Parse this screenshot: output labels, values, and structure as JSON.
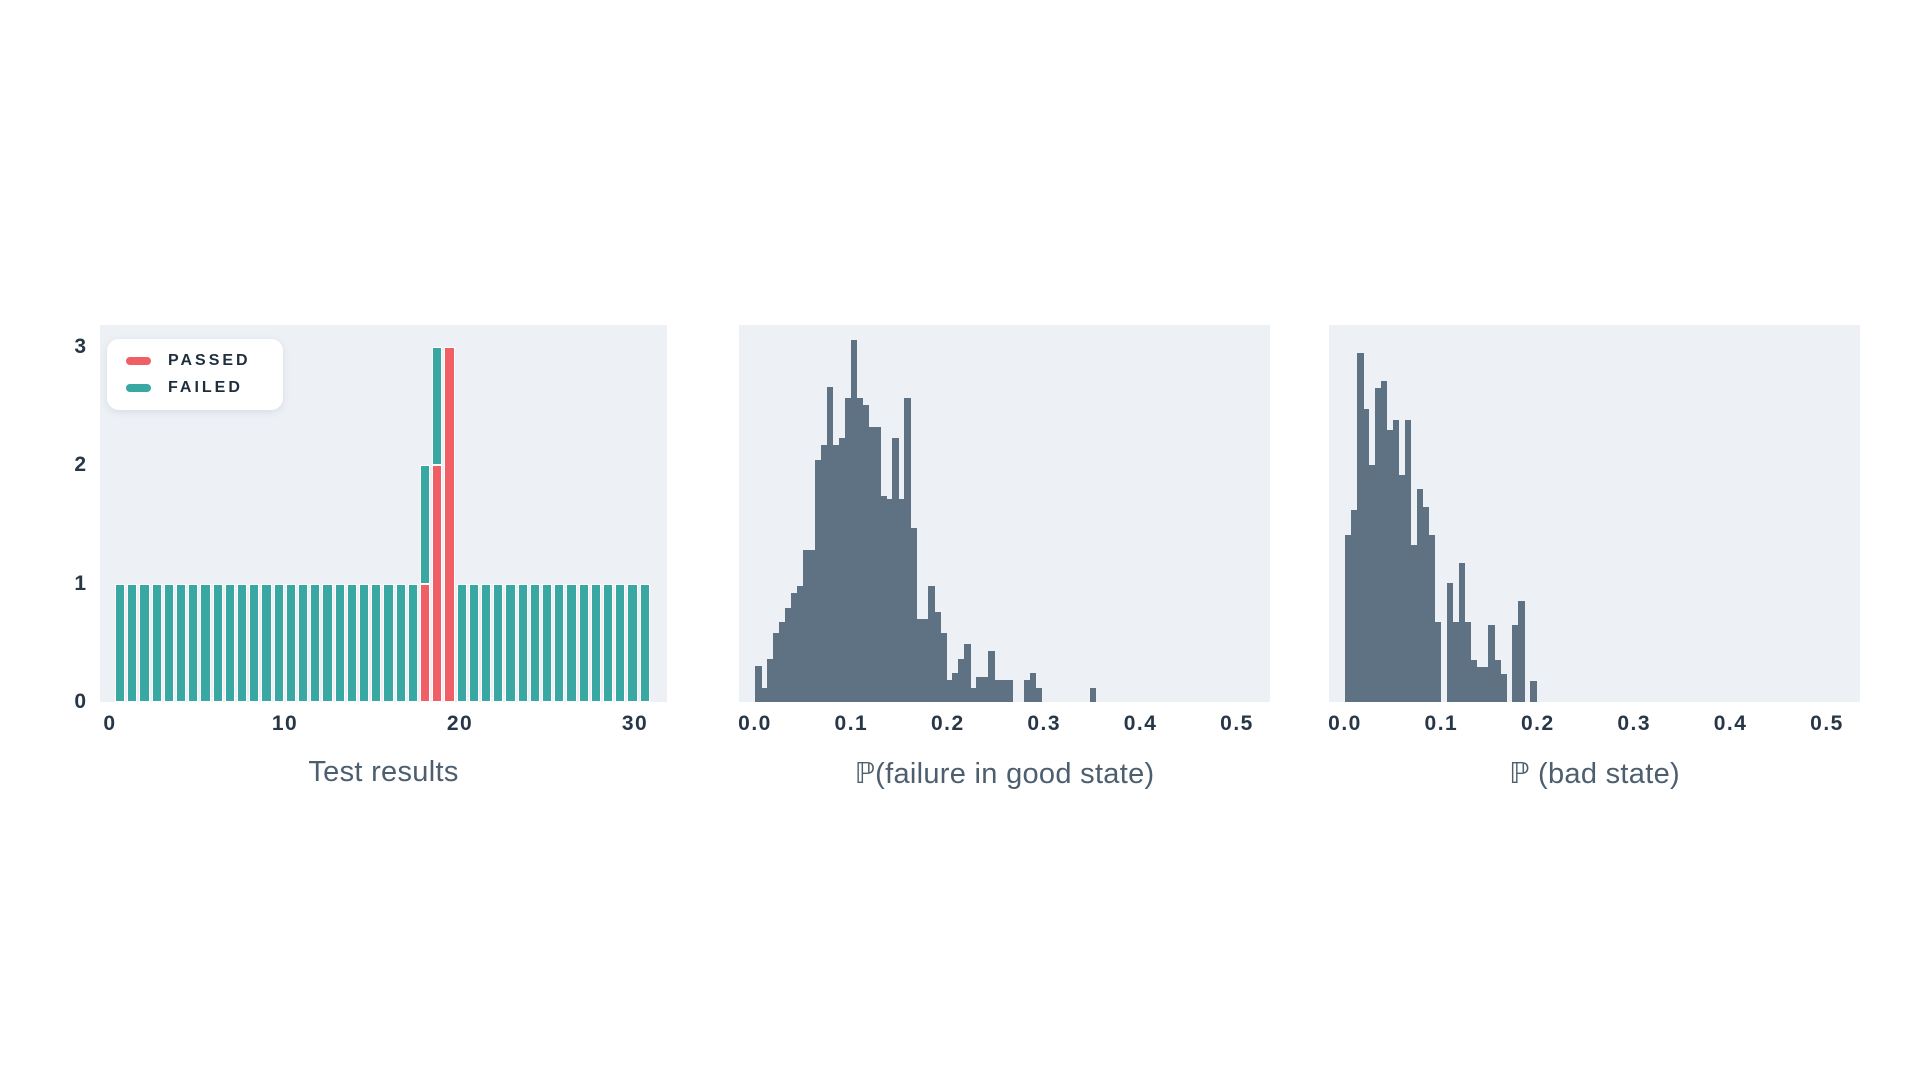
{
  "colors": {
    "passed": "#f15f66",
    "failed": "#39a7a2",
    "hist_bar": "#5e7284",
    "plot_bg": "#edf1f6",
    "page_bg": "#ffffff",
    "tick_text": "#273747",
    "title_text": "#4d5e6e",
    "legend_text": "#1e2e3e"
  },
  "chart_data": [
    {
      "type": "bar",
      "title": "Test results",
      "stacked": true,
      "legend": [
        {
          "label": "PASSED",
          "color": "passed"
        },
        {
          "label": "FAILED",
          "color": "failed"
        }
      ],
      "x_ticks": [
        0,
        10,
        20,
        30
      ],
      "y_ticks": [
        0,
        1,
        2,
        3
      ],
      "xlim": [
        -0.6,
        31.8
      ],
      "ylim": [
        0,
        3.19
      ],
      "x_start": 0.3,
      "bin_width": 0.7,
      "series": [
        {
          "name": "PASSED",
          "values": [
            0,
            0,
            0,
            0,
            0,
            0,
            0,
            0,
            0,
            0,
            0,
            0,
            0,
            0,
            0,
            0,
            0,
            0,
            0,
            0,
            0,
            0,
            0,
            0,
            0,
            1,
            2,
            3,
            0,
            0,
            0,
            0,
            0,
            0,
            0,
            0,
            0,
            0,
            0,
            0,
            0,
            0,
            0,
            0
          ]
        },
        {
          "name": "FAILED",
          "values": [
            1,
            1,
            1,
            1,
            1,
            1,
            1,
            1,
            1,
            1,
            1,
            1,
            1,
            1,
            1,
            1,
            1,
            1,
            1,
            1,
            1,
            1,
            1,
            1,
            1,
            1,
            1,
            0,
            1,
            1,
            1,
            1,
            1,
            1,
            1,
            1,
            1,
            1,
            1,
            1,
            1,
            1,
            1,
            1
          ]
        }
      ]
    },
    {
      "type": "histogram",
      "title": "ℙ(failure in good state)",
      "x_ticks": [
        "0.0",
        "0.1",
        "0.2",
        "0.3",
        "0.4",
        "0.5"
      ],
      "xlim": [
        0,
        0.5
      ],
      "bin_start": 0.0,
      "bin_width": 0.0062,
      "peak_frac": 0.96,
      "heights_pct": [
        10,
        4,
        12,
        19,
        22,
        26,
        30,
        32,
        42,
        42,
        67,
        71,
        87,
        71,
        73,
        84,
        100,
        84,
        82,
        76,
        76,
        57,
        56,
        73,
        56,
        84,
        48,
        23,
        23,
        32,
        25,
        19,
        6,
        8,
        12,
        16,
        4,
        7,
        7,
        14,
        6,
        6,
        6,
        0,
        0,
        6,
        8,
        4,
        0,
        0,
        0,
        0,
        0,
        0,
        0,
        0,
        4
      ]
    },
    {
      "type": "histogram",
      "title": "ℙ (bad state)",
      "x_ticks": [
        "0.0",
        "0.1",
        "0.2",
        "0.3",
        "0.4",
        "0.5"
      ],
      "xlim": [
        0,
        0.5
      ],
      "bin_start": 0.0,
      "bin_width": 0.0062,
      "peak_frac": 0.925,
      "heights_pct": [
        48,
        55,
        100,
        84,
        68,
        90,
        92,
        78,
        81,
        65,
        81,
        45,
        61,
        56,
        48,
        23,
        0,
        34,
        23,
        40,
        23,
        12,
        10,
        10,
        22,
        12,
        8,
        0,
        22,
        29,
        0,
        6,
        0
      ]
    }
  ]
}
